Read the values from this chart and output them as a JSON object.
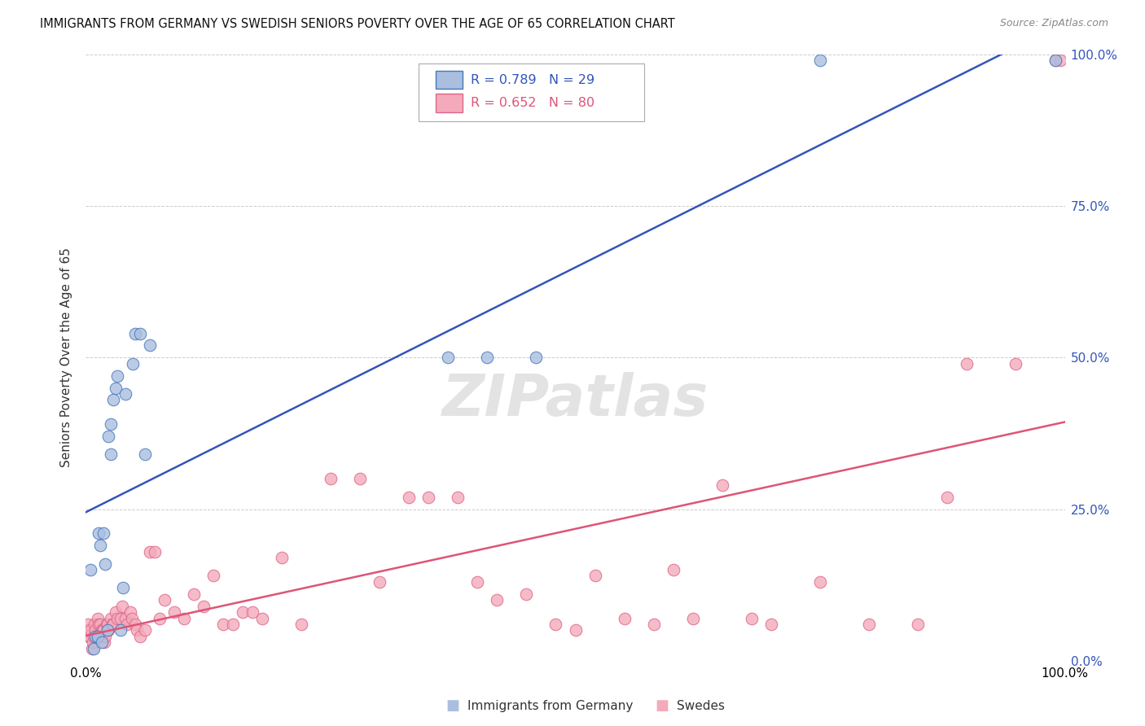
{
  "title": "IMMIGRANTS FROM GERMANY VS SWEDISH SENIORS POVERTY OVER THE AGE OF 65 CORRELATION CHART",
  "source": "Source: ZipAtlas.com",
  "ylabel": "Seniors Poverty Over the Age of 65",
  "legend_r_blue": "R = 0.789",
  "legend_n_blue": "N = 29",
  "legend_r_pink": "R = 0.652",
  "legend_n_pink": "N = 80",
  "blue_fill": "#AABFDF",
  "pink_fill": "#F4AABB",
  "blue_edge": "#4477BB",
  "pink_edge": "#DD6688",
  "blue_line": "#3355BB",
  "pink_line": "#DD5577",
  "watermark": "ZIPatlas",
  "blue_scatter_x": [
    0.005,
    0.008,
    0.01,
    0.012,
    0.013,
    0.015,
    0.016,
    0.018,
    0.02,
    0.022,
    0.023,
    0.025,
    0.025,
    0.028,
    0.03,
    0.032,
    0.035,
    0.038,
    0.04,
    0.048,
    0.05,
    0.055,
    0.06,
    0.065,
    0.37,
    0.41,
    0.46,
    0.75,
    0.99
  ],
  "blue_scatter_y": [
    0.15,
    0.02,
    0.04,
    0.04,
    0.21,
    0.19,
    0.03,
    0.21,
    0.16,
    0.05,
    0.37,
    0.34,
    0.39,
    0.43,
    0.45,
    0.47,
    0.05,
    0.12,
    0.44,
    0.49,
    0.54,
    0.54,
    0.34,
    0.52,
    0.5,
    0.5,
    0.5,
    0.99,
    0.99
  ],
  "pink_scatter_x": [
    0.001,
    0.002,
    0.003,
    0.004,
    0.005,
    0.006,
    0.007,
    0.008,
    0.009,
    0.01,
    0.011,
    0.012,
    0.013,
    0.015,
    0.016,
    0.017,
    0.018,
    0.019,
    0.02,
    0.021,
    0.022,
    0.023,
    0.025,
    0.027,
    0.028,
    0.03,
    0.032,
    0.035,
    0.037,
    0.04,
    0.042,
    0.045,
    0.047,
    0.05,
    0.052,
    0.055,
    0.06,
    0.065,
    0.07,
    0.075,
    0.08,
    0.09,
    0.1,
    0.11,
    0.12,
    0.13,
    0.14,
    0.15,
    0.16,
    0.17,
    0.18,
    0.2,
    0.22,
    0.25,
    0.28,
    0.3,
    0.33,
    0.35,
    0.38,
    0.4,
    0.42,
    0.45,
    0.48,
    0.5,
    0.52,
    0.55,
    0.58,
    0.6,
    0.62,
    0.65,
    0.68,
    0.7,
    0.75,
    0.8,
    0.85,
    0.88,
    0.9,
    0.95,
    0.99,
    0.995
  ],
  "pink_scatter_y": [
    0.05,
    0.06,
    0.04,
    0.04,
    0.05,
    0.02,
    0.03,
    0.04,
    0.06,
    0.05,
    0.04,
    0.07,
    0.06,
    0.06,
    0.05,
    0.05,
    0.05,
    0.03,
    0.04,
    0.06,
    0.06,
    0.05,
    0.07,
    0.06,
    0.06,
    0.08,
    0.07,
    0.07,
    0.09,
    0.07,
    0.06,
    0.08,
    0.07,
    0.06,
    0.05,
    0.04,
    0.05,
    0.18,
    0.18,
    0.07,
    0.1,
    0.08,
    0.07,
    0.11,
    0.09,
    0.14,
    0.06,
    0.06,
    0.08,
    0.08,
    0.07,
    0.17,
    0.06,
    0.3,
    0.3,
    0.13,
    0.27,
    0.27,
    0.27,
    0.13,
    0.1,
    0.11,
    0.06,
    0.05,
    0.14,
    0.07,
    0.06,
    0.15,
    0.07,
    0.29,
    0.07,
    0.06,
    0.13,
    0.06,
    0.06,
    0.27,
    0.49,
    0.49,
    0.99,
    0.99
  ]
}
